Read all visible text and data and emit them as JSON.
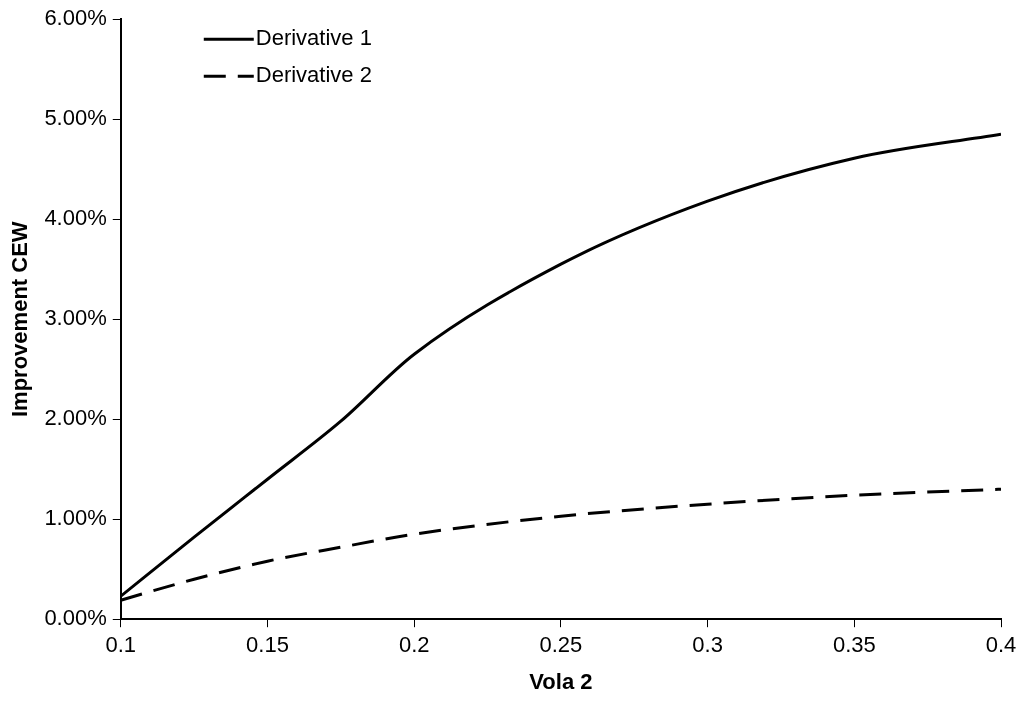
{
  "chart_data": {
    "type": "line",
    "xlabel": "Vola 2",
    "ylabel": "Improvement CEW",
    "x": [
      0.1,
      0.125,
      0.15,
      0.175,
      0.2,
      0.25,
      0.3,
      0.35,
      0.4
    ],
    "series": [
      {
        "name": "Derivative 1",
        "color": "#000000",
        "line_style": "solid",
        "values": [
          0.23,
          0.82,
          1.4,
          1.98,
          2.65,
          3.55,
          4.18,
          4.61,
          4.85
        ]
      },
      {
        "name": "Derivative 2",
        "color": "#000000",
        "line_style": "dashed",
        "values": [
          0.19,
          0.4,
          0.58,
          0.72,
          0.85,
          1.03,
          1.15,
          1.24,
          1.3
        ]
      }
    ],
    "xlim": [
      0.1,
      0.4
    ],
    "xticks": [
      0.1,
      0.15,
      0.2,
      0.25,
      0.3,
      0.35,
      0.4
    ],
    "ylim": [
      0,
      6
    ],
    "yticks": [
      {
        "value": 0,
        "label": "0.00%"
      },
      {
        "value": 1,
        "label": "1.00%"
      },
      {
        "value": 2,
        "label": "2.00%"
      },
      {
        "value": 3,
        "label": "3.00%"
      },
      {
        "value": 4,
        "label": "4.00%"
      },
      {
        "value": 5,
        "label": "5.00%"
      },
      {
        "value": 6,
        "label": "6.00%"
      }
    ],
    "grid": false,
    "legend": "top left",
    "marker": "none"
  }
}
